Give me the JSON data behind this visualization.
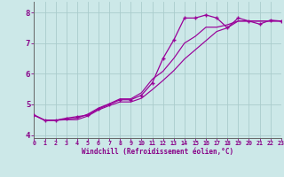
{
  "bg_color": "#cce8e8",
  "grid_color": "#aacccc",
  "line_color": "#990099",
  "xlim": [
    0,
    23
  ],
  "ylim": [
    3.9,
    8.35
  ],
  "xticks": [
    0,
    1,
    2,
    3,
    4,
    5,
    6,
    7,
    8,
    9,
    10,
    11,
    12,
    13,
    14,
    15,
    16,
    17,
    18,
    19,
    20,
    21,
    22,
    23
  ],
  "yticks": [
    4,
    5,
    6,
    7,
    8
  ],
  "xlabel": "Windchill (Refroidissement éolien,°C)",
  "hours": [
    0,
    1,
    2,
    3,
    4,
    5,
    6,
    7,
    8,
    9,
    10,
    11,
    12,
    13,
    14,
    15,
    16,
    17,
    18,
    19,
    20,
    21,
    22,
    23
  ],
  "line_main": [
    4.65,
    4.48,
    4.48,
    4.55,
    4.6,
    4.65,
    4.85,
    5.0,
    5.15,
    5.15,
    5.3,
    5.7,
    6.5,
    7.1,
    7.82,
    7.82,
    7.92,
    7.82,
    7.5,
    7.82,
    7.72,
    7.62,
    7.75,
    7.72
  ],
  "line_upper": [
    4.65,
    4.48,
    4.48,
    4.52,
    4.55,
    4.68,
    4.88,
    5.02,
    5.18,
    5.18,
    5.38,
    5.82,
    6.08,
    6.5,
    7.0,
    7.22,
    7.52,
    7.52,
    7.6,
    7.72,
    7.72,
    7.72,
    7.72,
    7.72
  ],
  "line_lower": [
    4.65,
    4.48,
    4.48,
    4.5,
    4.5,
    4.62,
    4.82,
    4.96,
    5.08,
    5.08,
    5.2,
    5.48,
    5.78,
    6.1,
    6.48,
    6.78,
    7.08,
    7.38,
    7.5,
    7.72,
    7.72,
    7.72,
    7.72,
    7.72
  ]
}
